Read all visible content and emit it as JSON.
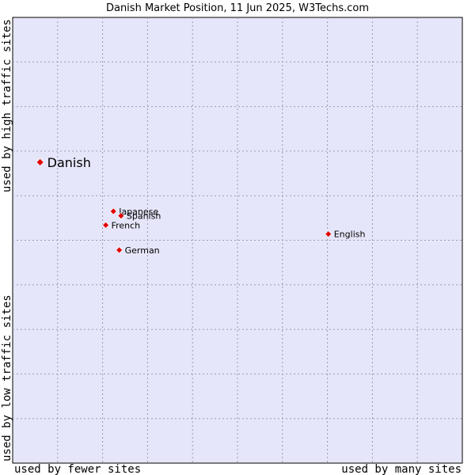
{
  "chart_data": {
    "type": "scatter",
    "title": "Danish Market Position, 11 Jun 2025, W3Techs.com",
    "xlabel_left": "used by fewer sites",
    "xlabel_right": "used by many sites",
    "ylabel_bottom": "used by low traffic sites",
    "ylabel_top": "used by high traffic sites",
    "grid": true,
    "xlim": [
      0,
      100
    ],
    "ylim": [
      0,
      100
    ],
    "point_color": "#e00000",
    "plot_background": "#e6e6fa",
    "points": [
      {
        "label": "Danish",
        "x": 6.1,
        "y": 67.5,
        "highlight": true
      },
      {
        "label": "Japanese",
        "x": 22.4,
        "y": 56.5,
        "highlight": false
      },
      {
        "label": "Spanish",
        "x": 24.1,
        "y": 55.5,
        "highlight": false
      },
      {
        "label": "French",
        "x": 20.7,
        "y": 53.4,
        "highlight": false
      },
      {
        "label": "German",
        "x": 23.7,
        "y": 47.8,
        "highlight": false
      },
      {
        "label": "English",
        "x": 70.2,
        "y": 51.4,
        "highlight": false
      }
    ]
  }
}
